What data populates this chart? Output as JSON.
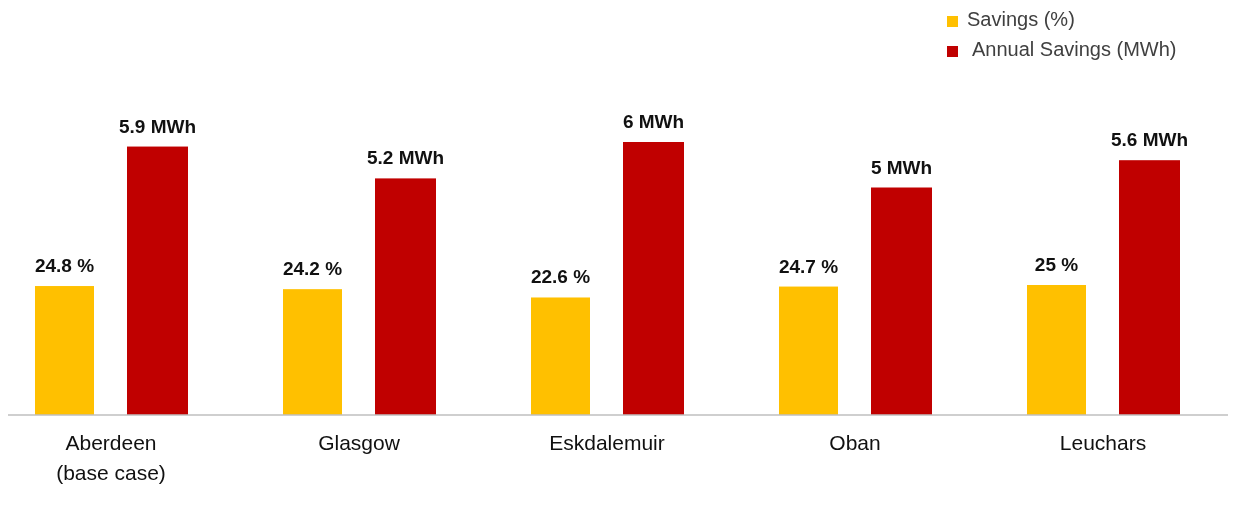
{
  "chart_data": {
    "type": "bar",
    "categories": [
      "Aberdeen (base case)",
      "Glasgow",
      "Eskdalemuir",
      "Oban",
      "Leuchars"
    ],
    "series": [
      {
        "name": "Savings (%)",
        "color": "#ffc000",
        "axis": "y2",
        "values": [
          24.8,
          24.2,
          22.6,
          24.7,
          25
        ],
        "value_labels": [
          "24.8 %",
          "24.2 %",
          "22.6 %",
          "24.7 %",
          "25 %"
        ]
      },
      {
        "name": "Annual Savings (MWh)",
        "color": "#c00000",
        "values": [
          5.9,
          5.2,
          6,
          5,
          5.6
        ],
        "value_labels": [
          "5.9 MWh",
          "5.2 MWh",
          "6 MWh",
          "5 MWh",
          "5.6 MWh"
        ]
      }
    ],
    "tick_labels": false,
    "legend": "top right"
  }
}
